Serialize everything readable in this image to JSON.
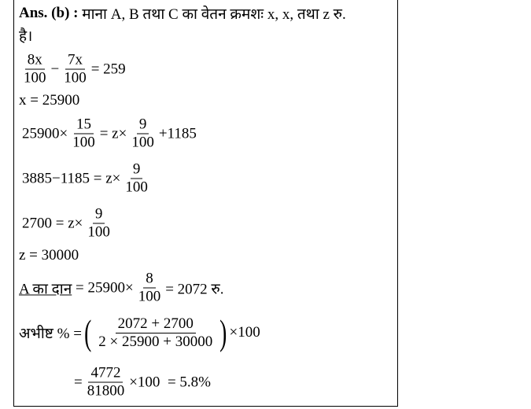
{
  "answer_label": "Ans. (b) :",
  "lines": [
    {
      "parts": [
        " माना A, B तथा C का वेतन क्रमशः x, x, तथा z रु."
      ]
    },
    {
      "parts": [
        "है।"
      ]
    },
    {
      "parts": [
        {
          "num": "8x",
          "den": "100"
        },
        "−",
        {
          "num": "7x",
          "den": "100"
        },
        "= 259"
      ]
    },
    {
      "parts": [
        "x = 25900"
      ]
    },
    {
      "parts": [
        "25900×",
        {
          "num": "15",
          "den": "100"
        },
        "= z×",
        {
          "num": "9",
          "den": "100"
        },
        "+1185"
      ]
    },
    {
      "parts": [
        "3885−1185 = z×",
        {
          "num": "9",
          "den": "100"
        }
      ]
    },
    {
      "parts": [
        "2700 = z×",
        {
          "num": "9",
          "den": "100"
        }
      ]
    },
    {
      "parts": [
        "z = 30000"
      ]
    },
    {
      "parts": [
        "A का दान",
        " = 25900×",
        {
          "num": "8",
          "den": "100"
        },
        "= 2072 रु."
      ]
    },
    {
      "parts": [
        "अभीष्ट % =",
        "(",
        {
          "num": "2072 + 2700",
          "den": "2 × 25900 + 30000"
        },
        ")",
        "×100"
      ]
    },
    {
      "parts": [
        "=",
        {
          "num": "4772",
          "den": "81800"
        },
        "×100",
        "  = 5.8%"
      ]
    }
  ]
}
